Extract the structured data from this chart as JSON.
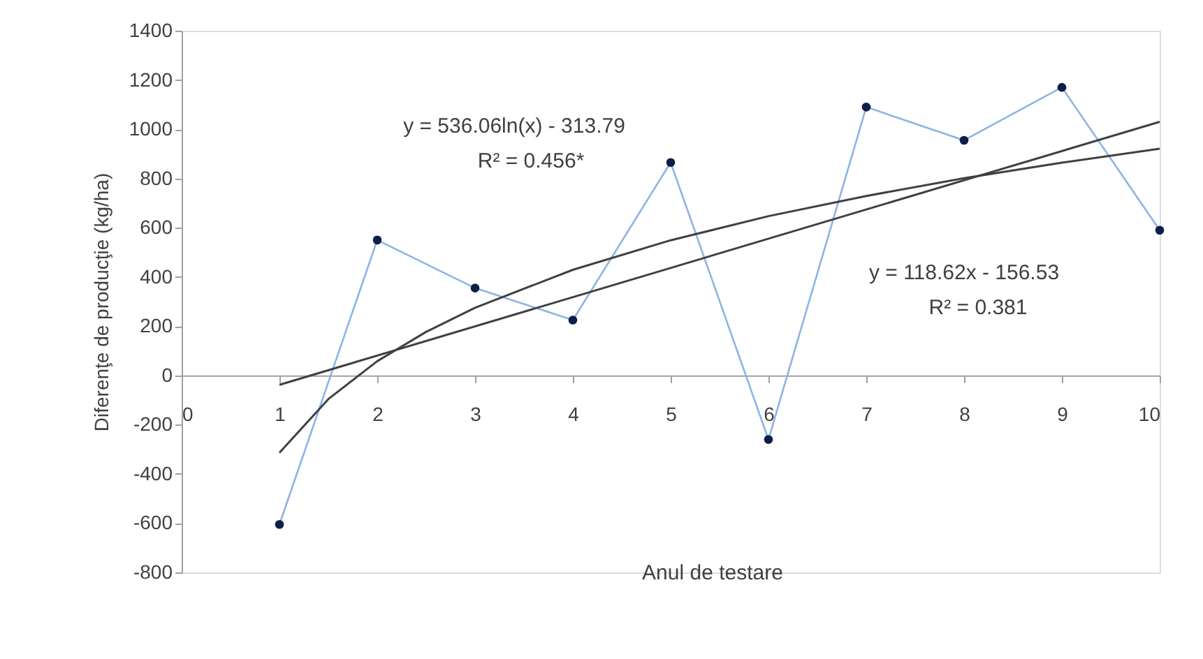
{
  "chart_data": {
    "type": "line",
    "xlabel": "Anul de testare",
    "ylabel": "Diferenţe de producţie (kg/ha)",
    "x": [
      1,
      2,
      3,
      4,
      5,
      6,
      7,
      8,
      9,
      10
    ],
    "series": [
      {
        "color": "#8db4e2",
        "marker": "circle",
        "values": [
          -605,
          550,
          355,
          225,
          865,
          -260,
          1090,
          955,
          1170,
          590
        ]
      },
      {
        "type": "line",
        "color": "#404040",
        "marker": "none",
        "x": [
          1,
          10
        ],
        "values": [
          -38,
          1030
        ]
      },
      {
        "type": "line",
        "color": "#404040",
        "marker": "none",
        "x": [
          1,
          1.5,
          2,
          2.5,
          3,
          4,
          5,
          6,
          7,
          8,
          9,
          10
        ],
        "values": [
          -314,
          -96,
          58,
          177,
          275,
          429,
          549,
          647,
          729,
          801,
          864,
          921
        ]
      }
    ],
    "annotations": [
      "y = 536.06ln(x) - 313.79",
      "R² = 0.456*",
      "y = 118.62x - 156.53",
      "R² = 0.381"
    ],
    "xlim": [
      0,
      10
    ],
    "xticks": [
      0,
      1,
      2,
      3,
      4,
      5,
      6,
      7,
      8,
      9,
      10
    ],
    "ylim": [
      -800,
      1400
    ],
    "yticks": [
      -800,
      -600,
      -400,
      -200,
      0,
      200,
      400,
      600,
      800,
      1000,
      1200,
      1400
    ],
    "grid": false
  }
}
